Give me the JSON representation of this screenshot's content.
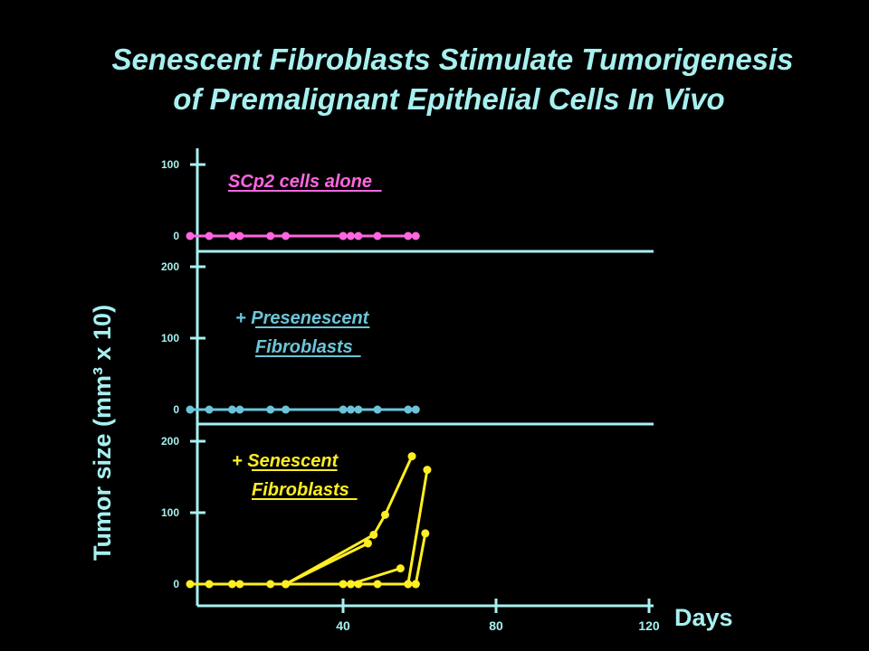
{
  "slide": {
    "title_line1": "Senescent Fibroblasts Stimulate Tumorigenesis",
    "title_line2": "of Premalignant Epithelial Cells In Vivo",
    "ylabel": "Tumor size (mm³ x 10)",
    "xlabel": "Days"
  },
  "colors": {
    "background": "#000000",
    "axis": "#a8f0f0",
    "panel1": "#ff66e0",
    "panel2": "#6cc4d8",
    "panel3": "#ffee22"
  },
  "chart_data": {
    "type": "line",
    "xlabel": "Days",
    "ylabel": "Tumor size (mm³ x 10)",
    "x_ticks": [
      "40",
      "80",
      "120"
    ],
    "x_tick_values": [
      40,
      80,
      120
    ],
    "xlim": [
      0,
      124
    ],
    "panels": [
      {
        "label_lines": [
          "SCp2 cells alone"
        ],
        "ylim": [
          0,
          100
        ],
        "y_ticks": [
          0,
          100
        ],
        "series": [
          {
            "x": [
              0,
              5,
              11,
              13,
              21,
              25,
              40,
              42,
              44,
              49,
              57,
              59
            ],
            "y": [
              0,
              0,
              0,
              0,
              0,
              0,
              0,
              0,
              0,
              0,
              0,
              0
            ]
          }
        ]
      },
      {
        "label_lines": [
          "+ Presenescent",
          "Fibroblasts"
        ],
        "ylim": [
          0,
          200
        ],
        "y_ticks": [
          0,
          100,
          200
        ],
        "series": [
          {
            "x": [
              0,
              5,
              11,
              13,
              21,
              25,
              40,
              42,
              44,
              49,
              57,
              59
            ],
            "y": [
              0,
              0,
              0,
              0,
              0,
              0,
              0,
              0,
              0,
              0,
              0,
              0
            ]
          }
        ]
      },
      {
        "label_lines": [
          "+ Senescent",
          "Fibroblasts"
        ],
        "ylim": [
          0,
          200
        ],
        "y_ticks": [
          0,
          100,
          200
        ],
        "series": [
          {
            "x": [
              0,
              5,
              11,
              13,
              21,
              25,
              40,
              42,
              44,
              49,
              57,
              59
            ],
            "y": [
              0,
              0,
              0,
              0,
              0,
              0,
              0,
              0,
              0,
              0,
              0,
              0
            ]
          },
          {
            "x": [
              25,
              48,
              51,
              58
            ],
            "y": [
              0,
              69,
              97,
              179
            ]
          },
          {
            "x": [
              25,
              46.5
            ],
            "y": [
              0,
              57
            ]
          },
          {
            "x": [
              42,
              55
            ],
            "y": [
              0,
              22
            ]
          },
          {
            "x": [
              59,
              61.5
            ],
            "y": [
              0,
              71
            ]
          },
          {
            "x": [
              57,
              62
            ],
            "y": [
              0,
              160
            ]
          }
        ]
      }
    ]
  }
}
